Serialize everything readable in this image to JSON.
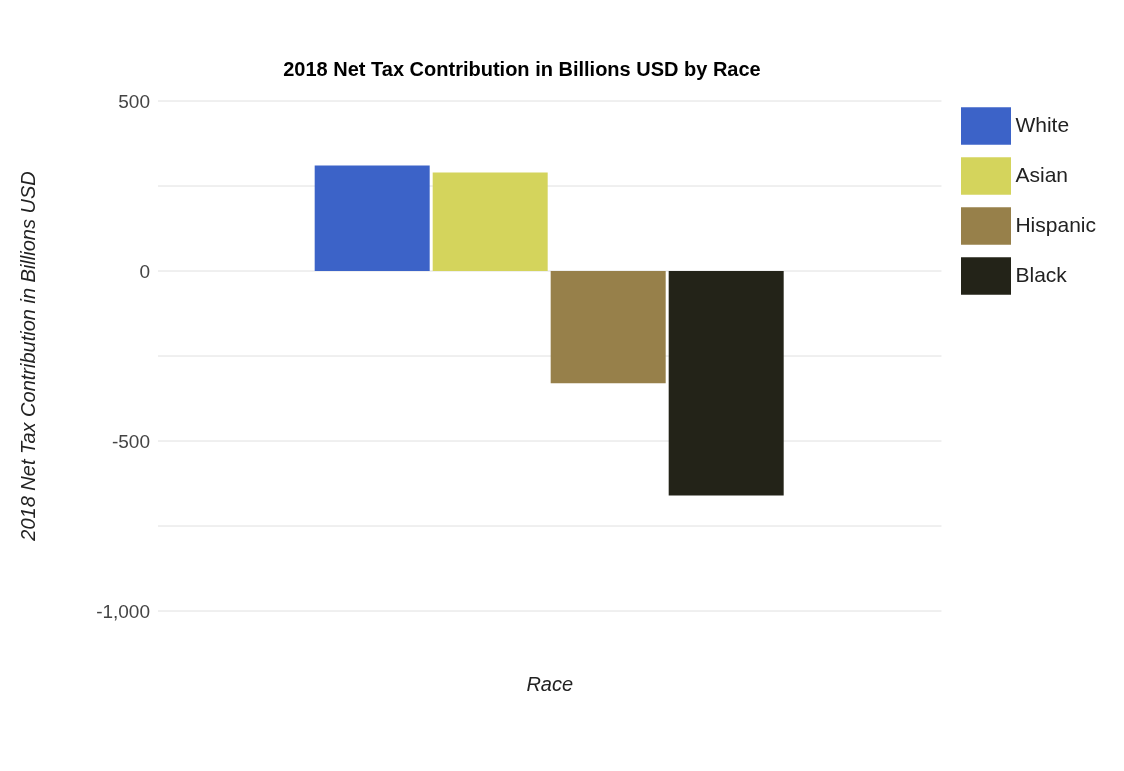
{
  "chart_data": {
    "type": "bar",
    "title": "2018 Net Tax Contribution in Billions USD by Race",
    "xlabel": "Race",
    "ylabel": "2018 Net Tax Contribution in Billions USD",
    "categories": [
      null
    ],
    "series": [
      {
        "name": "White",
        "color": "#3c63c8",
        "values": [
          310
        ]
      },
      {
        "name": "Asian",
        "color": "#d4d45c",
        "values": [
          290
        ]
      },
      {
        "name": "Hispanic",
        "color": "#97804a",
        "values": [
          -330
        ]
      },
      {
        "name": "Black",
        "color": "#232318",
        "values": [
          -660
        ]
      }
    ],
    "ylim": [
      -1000,
      500
    ],
    "yticks": [
      500,
      {
        "value": 250,
        "label": null
      },
      0,
      {
        "value": -250,
        "label": null
      },
      -500,
      {
        "value": -750,
        "label": null
      },
      {
        "value": -1000,
        "label": "-1,000"
      }
    ],
    "grid": "y",
    "legend": "top right"
  }
}
